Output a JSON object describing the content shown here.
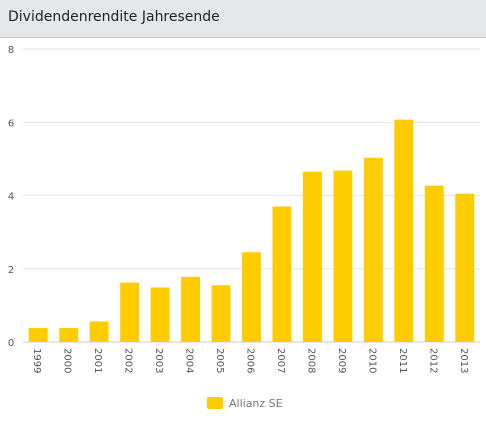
{
  "header": {
    "title": "Dividendenrendite Jahresende"
  },
  "colors": {
    "bar": "#ffcc00",
    "gridline": "#e6e6e6",
    "header_bg": "#e6e7e8"
  },
  "chart_data": {
    "type": "bar",
    "title": "Dividendenrendite Jahresende",
    "xlabel": "",
    "ylabel": "",
    "ylim": [
      0,
      8
    ],
    "yticks": [
      "0",
      "2",
      "4",
      "6",
      "8"
    ],
    "grid": true,
    "legend_position": "bottom-center",
    "categories": [
      "1999",
      "2000",
      "2001",
      "2002",
      "2003",
      "2004",
      "2005",
      "2006",
      "2007",
      "2008",
      "2009",
      "2010",
      "2011",
      "2012",
      "2013"
    ],
    "series": [
      {
        "name": "Allianz SE",
        "values": [
          0.38,
          0.38,
          0.56,
          1.62,
          1.49,
          1.78,
          1.55,
          2.45,
          3.7,
          4.65,
          4.68,
          5.03,
          6.07,
          4.27,
          4.05
        ]
      }
    ]
  }
}
